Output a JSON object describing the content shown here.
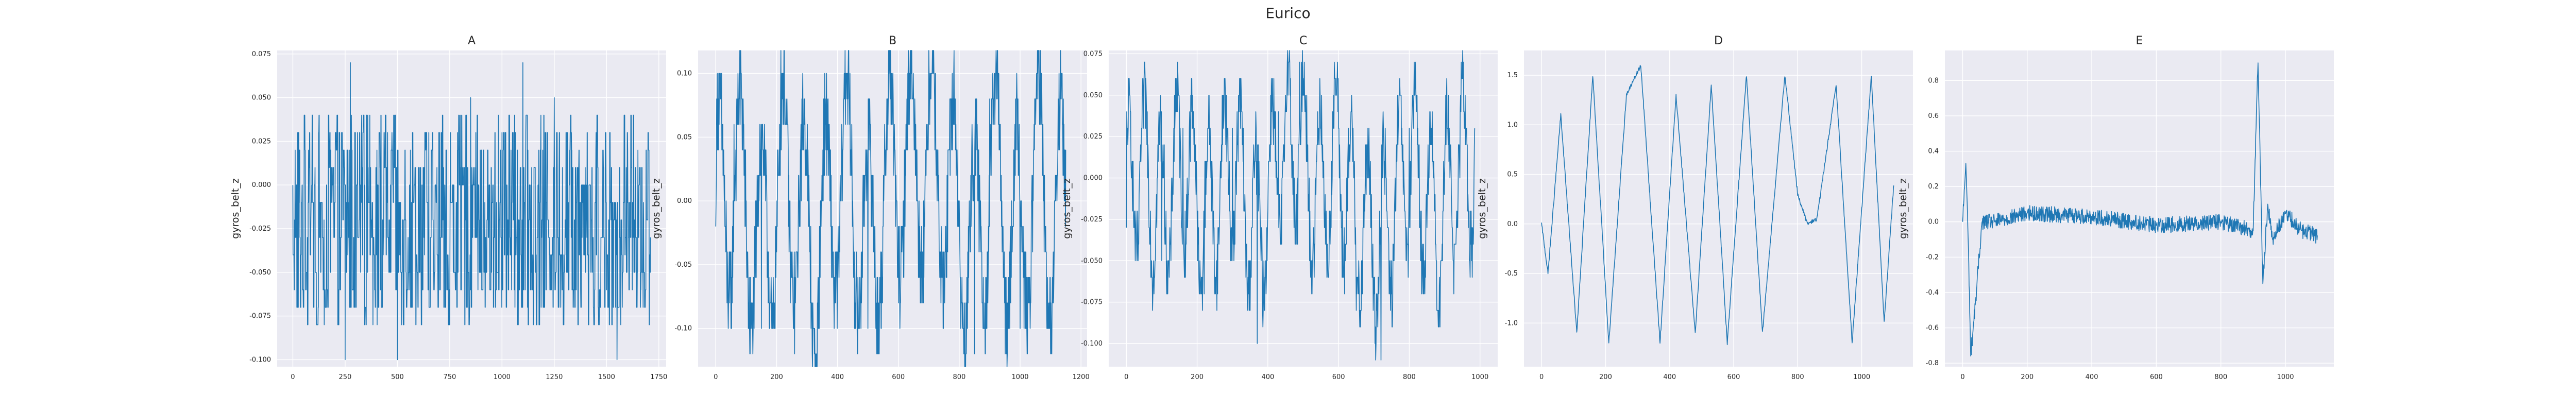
{
  "figure": {
    "title": "Eurico"
  },
  "colors": {
    "line": "#1f77b4",
    "axes_bg": "#eaeaf2",
    "grid": "#ffffff",
    "text": "#262626"
  },
  "chart_data": [
    {
      "type": "line",
      "title": "A",
      "xlabel": "",
      "ylabel": "gyros_belt_z",
      "xlim": [
        -75,
        1785
      ],
      "ylim": [
        -0.104,
        0.077
      ],
      "xticks": [
        0,
        250,
        500,
        750,
        1000,
        1250,
        1500,
        1750
      ],
      "yticks": [
        -0.1,
        -0.075,
        -0.05,
        -0.025,
        0.0,
        0.025,
        0.05,
        0.075
      ],
      "ytick_labels": [
        "-0.100",
        "-0.075",
        "-0.050",
        "-0.025",
        "0.000",
        "0.025",
        "0.050",
        "0.075"
      ],
      "grid": true,
      "series": [
        {
          "pattern": "noise",
          "x": [
            0,
            25,
            75,
            150,
            250,
            275,
            350,
            500,
            650,
            750,
            850,
            950,
            1000,
            1100,
            1150,
            1250,
            1350,
            1450,
            1550,
            1650,
            1710
          ],
          "y": [
            0.0,
            -0.07,
            0.02,
            -0.08,
            -0.1,
            0.07,
            -0.03,
            -0.1,
            0.03,
            -0.08,
            0.05,
            -0.05,
            0.03,
            0.07,
            -0.08,
            0.05,
            -0.07,
            0.03,
            -0.1,
            0.02,
            -0.03
          ],
          "lo": -0.08,
          "hi": 0.04,
          "q": 0.01
        }
      ]
    },
    {
      "type": "line",
      "title": "B",
      "xlabel": "",
      "ylabel": "gyros_belt_z",
      "xlim": [
        -58,
        1220
      ],
      "ylim": [
        -0.13,
        0.118
      ],
      "xticks": [
        0,
        200,
        400,
        600,
        800,
        1000,
        1200
      ],
      "yticks": [
        -0.1,
        -0.05,
        0.0,
        0.05,
        0.1
      ],
      "ytick_labels": [
        "-0.10",
        "-0.05",
        "0.00",
        "0.05",
        "0.10"
      ],
      "grid": true,
      "series": [
        {
          "pattern": "wave",
          "x": [
            0,
            60,
            150,
            230,
            330,
            420,
            500,
            580,
            650,
            700,
            760,
            850,
            900,
            1000,
            1050,
            1110,
            1150
          ],
          "y": [
            -0.03,
            0.05,
            -0.1,
            0.05,
            -0.12,
            0.08,
            -0.1,
            0.06,
            0.08,
            0.11,
            0.02,
            -0.12,
            0.07,
            -0.1,
            0.08,
            -0.08,
            0.03
          ],
          "period": 70,
          "amp": 0.085,
          "q": 0.02
        }
      ]
    },
    {
      "type": "line",
      "title": "C",
      "xlabel": "",
      "ylabel": "gyros_belt_z",
      "xlim": [
        -50,
        1050
      ],
      "ylim": [
        -0.114,
        0.077
      ],
      "xticks": [
        0,
        200,
        400,
        600,
        800,
        1000
      ],
      "yticks": [
        -0.1,
        -0.075,
        -0.05,
        -0.025,
        0.0,
        0.025,
        0.05,
        0.075
      ],
      "ytick_labels": [
        "-0.100",
        "-0.075",
        "-0.050",
        "-0.025",
        "0.000",
        "0.025",
        "0.050",
        "0.075"
      ],
      "grid": true,
      "series": [
        {
          "pattern": "wave",
          "x": [
            0,
            40,
            100,
            160,
            220,
            300,
            370,
            430,
            490,
            530,
            600,
            650,
            720,
            800,
            880,
            940,
            985
          ],
          "y": [
            -0.03,
            0.02,
            -0.05,
            0.03,
            -0.07,
            0.03,
            -0.1,
            0.04,
            0.07,
            -0.03,
            0.03,
            -0.08,
            -0.11,
            0.03,
            -0.08,
            0.02,
            0.03
          ],
          "period": 45,
          "amp": 0.05,
          "q": 0.01
        }
      ]
    },
    {
      "type": "line",
      "title": "D",
      "xlabel": "",
      "ylabel": "gyros_belt_z",
      "xlim": [
        -55,
        1160
      ],
      "ylim": [
        -1.44,
        1.75
      ],
      "xticks": [
        0,
        200,
        400,
        600,
        800,
        1000
      ],
      "yticks": [
        -1.0,
        -0.5,
        0.0,
        0.5,
        1.0,
        1.5
      ],
      "ytick_labels": [
        "-1.0",
        "-0.5",
        "0.0",
        "0.5",
        "1.0",
        "1.5"
      ],
      "grid": true,
      "series": [
        {
          "pattern": "sine",
          "x": [
            0,
            20,
            60,
            110,
            160,
            210,
            265,
            310,
            370,
            420,
            480,
            530,
            580,
            640,
            690,
            760,
            800,
            830,
            860,
            920,
            970,
            1030,
            1070,
            1100
          ],
          "y": [
            0.0,
            -0.5,
            1.1,
            -1.1,
            1.5,
            -1.2,
            1.3,
            1.6,
            -1.2,
            1.3,
            -1.1,
            1.4,
            -1.2,
            1.5,
            -1.1,
            1.5,
            0.3,
            0.0,
            0.05,
            1.4,
            -1.2,
            1.5,
            -1.0,
            0.4
          ]
        }
      ]
    },
    {
      "type": "line",
      "title": "E",
      "xlabel": "",
      "ylabel": "gyros_belt_z",
      "xlim": [
        -55,
        1150
      ],
      "ylim": [
        -0.82,
        0.97
      ],
      "xticks": [
        0,
        200,
        400,
        600,
        800,
        1000
      ],
      "yticks": [
        -0.8,
        -0.6,
        -0.4,
        -0.2,
        0.0,
        0.2,
        0.4,
        0.6,
        0.8
      ],
      "ytick_labels": [
        "-0.8",
        "-0.6",
        "-0.4",
        "-0.2",
        "0.0",
        "0.2",
        "0.4",
        "0.6",
        "0.8"
      ],
      "grid": true,
      "series": [
        {
          "pattern": "spikes",
          "x": [
            0,
            10,
            18,
            25,
            40,
            60,
            100,
            200,
            400,
            600,
            800,
            900,
            915,
            930,
            945,
            960,
            1000,
            1050,
            1100
          ],
          "y": [
            0.0,
            0.33,
            -0.15,
            -0.76,
            -0.45,
            0.0,
            0.0,
            0.05,
            0.03,
            -0.02,
            0.0,
            -0.05,
            0.9,
            -0.35,
            0.1,
            -0.1,
            0.05,
            -0.05,
            -0.08
          ]
        }
      ]
    }
  ]
}
